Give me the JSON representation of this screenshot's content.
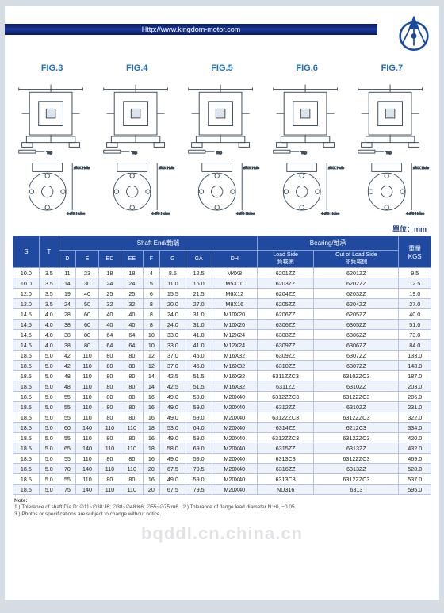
{
  "header": {
    "url": "Http://www.kingdom-motor.com"
  },
  "figs": [
    "FIG.3",
    "FIG.4",
    "FIG.5",
    "FIG.6",
    "FIG.7"
  ],
  "unit_label": "單位：mm",
  "table": {
    "group_headers": {
      "shaft": "Shaft End/軸端",
      "bearing": "Bearing/軸承",
      "weight": "重量\nKGS",
      "load": "Load Side\n負載側",
      "outload": "Out of Load Side\n非負載側"
    },
    "cols": [
      "S",
      "T",
      "D",
      "E",
      "ED",
      "EE",
      "F",
      "G",
      "GA",
      "DH",
      "load",
      "outload",
      "kgs"
    ],
    "rows": [
      [
        "10.0",
        "3.5",
        "11",
        "23",
        "18",
        "18",
        "4",
        "8.5",
        "12.5",
        "M4X8",
        "6201ZZ",
        "6201ZZ",
        "9.5"
      ],
      [
        "10.0",
        "3.5",
        "14",
        "30",
        "24",
        "24",
        "5",
        "11.0",
        "16.0",
        "M5X10",
        "6203ZZ",
        "6202ZZ",
        "12.5"
      ],
      [
        "12.0",
        "3.5",
        "19",
        "40",
        "25",
        "25",
        "6",
        "15.5",
        "21.5",
        "M6X12",
        "6204ZZ",
        "6203ZZ",
        "19.0"
      ],
      [
        "12.0",
        "3.5",
        "24",
        "50",
        "32",
        "32",
        "8",
        "20.0",
        "27.0",
        "M8X16",
        "6205ZZ",
        "6204ZZ",
        "27.0"
      ],
      [
        "14.5",
        "4.0",
        "28",
        "60",
        "40",
        "40",
        "8",
        "24.0",
        "31.0",
        "M10X20",
        "6206ZZ",
        "6205ZZ",
        "40.0"
      ],
      [
        "14.5",
        "4.0",
        "38",
        "60",
        "40",
        "40",
        "8",
        "24.0",
        "31.0",
        "M10X20",
        "6306ZZ",
        "6305ZZ",
        "51.0"
      ],
      [
        "14.5",
        "4.0",
        "38",
        "80",
        "64",
        "64",
        "10",
        "33.0",
        "41.0",
        "M12X24",
        "6308ZZ",
        "6306ZZ",
        "73.0"
      ],
      [
        "14.5",
        "4.0",
        "38",
        "80",
        "64",
        "64",
        "10",
        "33.0",
        "41.0",
        "M12X24",
        "6309ZZ",
        "6306ZZ",
        "84.0"
      ],
      [
        "18.5",
        "5.0",
        "42",
        "110",
        "80",
        "80",
        "12",
        "37.0",
        "45.0",
        "M16X32",
        "6309ZZ",
        "6307ZZ",
        "133.0"
      ],
      [
        "18.5",
        "5.0",
        "42",
        "110",
        "80",
        "80",
        "12",
        "37.0",
        "45.0",
        "M16X32",
        "6310ZZ",
        "6307ZZ",
        "148.0"
      ],
      [
        "18.5",
        "5.0",
        "48",
        "110",
        "80",
        "80",
        "14",
        "42.5",
        "51.5",
        "M16X32",
        "6311ZZC3",
        "6310ZZC3",
        "187.0"
      ],
      [
        "18.5",
        "5.0",
        "48",
        "110",
        "80",
        "80",
        "14",
        "42.5",
        "51.5",
        "M16X32",
        "6311ZZ",
        "6310ZZ",
        "203.0"
      ],
      [
        "18.5",
        "5.0",
        "55",
        "110",
        "80",
        "80",
        "16",
        "49.0",
        "59.0",
        "M20X40",
        "6312ZZC3",
        "6312ZZC3",
        "206.0"
      ],
      [
        "18.5",
        "5.0",
        "55",
        "110",
        "80",
        "80",
        "16",
        "49.0",
        "59.0",
        "M20X40",
        "6312ZZ",
        "6310ZZ",
        "231.0"
      ],
      [
        "18.5",
        "5.0",
        "55",
        "110",
        "80",
        "80",
        "16",
        "49.0",
        "59.0",
        "M20X40",
        "6312ZZC3",
        "6312ZZC3",
        "322.0"
      ],
      [
        "18.5",
        "5.0",
        "60",
        "140",
        "110",
        "110",
        "18",
        "53.0",
        "64.0",
        "M20X40",
        "6314ZZ",
        "6212C3",
        "334.0"
      ],
      [
        "18.5",
        "5.0",
        "55",
        "110",
        "80",
        "80",
        "16",
        "49.0",
        "59.0",
        "M20X40",
        "6312ZZC3",
        "6312ZZC3",
        "420.0"
      ],
      [
        "18.5",
        "5.0",
        "65",
        "140",
        "110",
        "110",
        "18",
        "58.0",
        "69.0",
        "M20X40",
        "6315ZZ",
        "6313ZZ",
        "432.0"
      ],
      [
        "18.5",
        "5.0",
        "55",
        "110",
        "80",
        "80",
        "16",
        "49.0",
        "59.0",
        "M20X40",
        "6313C3",
        "6312ZZC3",
        "469.0"
      ],
      [
        "18.5",
        "5.0",
        "70",
        "140",
        "110",
        "110",
        "20",
        "67.5",
        "79.5",
        "M20X40",
        "6316ZZ",
        "6313ZZ",
        "528.0"
      ],
      [
        "18.5",
        "5.0",
        "55",
        "110",
        "80",
        "80",
        "16",
        "49.0",
        "59.0",
        "M20X40",
        "6313C3",
        "6312ZZC3",
        "537.0"
      ],
      [
        "18.5",
        "5.0",
        "75",
        "140",
        "110",
        "110",
        "20",
        "67.5",
        "79.5",
        "M20X40",
        "NU316",
        "6313",
        "595.0"
      ]
    ]
  },
  "notes": {
    "title": "Note:",
    "n1": "1.) Tolerance of shaft Dia.D:  ∅11~∅38:J6;  ∅38~∅48:K6;  ∅55~∅75:m6.",
    "n2": "2.) Tolerance of flange lead diameter N:+0, −0.05.",
    "n3": "3.) Photos or specifications are subject to change without notice."
  },
  "watermark": "bqddl.cn.china.cn",
  "colors": {
    "header_bar": "#15389e",
    "fig_title": "#1a6fc7",
    "th_bg": "#1f4aa0",
    "diagram_stroke": "#3a4a5a"
  }
}
